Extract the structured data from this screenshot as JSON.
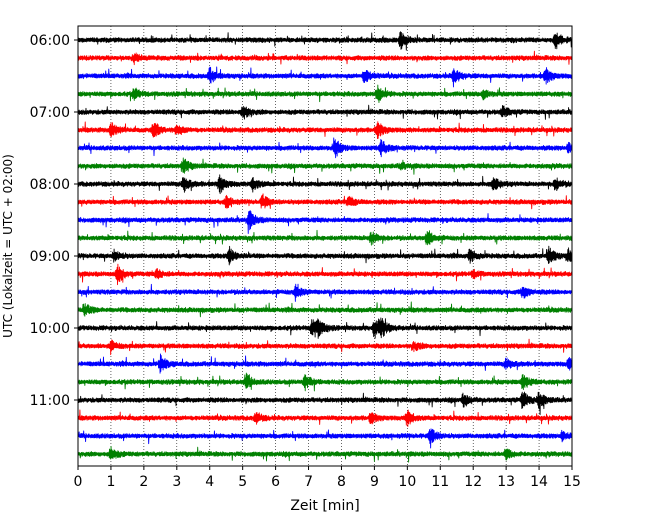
{
  "chart_data": {
    "type": "line",
    "title": "",
    "xlabel": "Zeit  [min]",
    "ylabel": "UTC (Lokalzeit = UTC + 02:00)",
    "xlim": [
      0,
      15
    ],
    "x_ticks": [
      0,
      1,
      2,
      3,
      4,
      5,
      6,
      7,
      8,
      9,
      10,
      11,
      12,
      13,
      14,
      15
    ],
    "vertical_gridlines": "dotted, every 1 min",
    "trace_interval_min": 15,
    "trace_count": 24,
    "trace_colors": [
      "#000000",
      "#ff0000",
      "#0000ff",
      "#008000"
    ],
    "time_labels": [
      {
        "label": "06:00",
        "trace": 0
      },
      {
        "label": "07:00",
        "trace": 4
      },
      {
        "label": "08:00",
        "trace": 8
      },
      {
        "label": "09:00",
        "trace": 12
      },
      {
        "label": "10:00",
        "trace": 16
      },
      {
        "label": "11:00",
        "trace": 20
      }
    ],
    "series": [
      {
        "start": "06:00",
        "color": "#000000",
        "events": [
          [
            9.8,
            0.9
          ],
          [
            14.5,
            1.0
          ]
        ]
      },
      {
        "start": "06:15",
        "color": "#ff0000",
        "events": [
          [
            1.7,
            0.5
          ]
        ]
      },
      {
        "start": "06:30",
        "color": "#0000ff",
        "events": [
          [
            4.0,
            0.8
          ],
          [
            8.7,
            0.9
          ],
          [
            11.4,
            1.0
          ],
          [
            14.2,
            0.9
          ]
        ]
      },
      {
        "start": "06:45",
        "color": "#008000",
        "events": [
          [
            1.7,
            0.6
          ],
          [
            9.1,
            0.9
          ],
          [
            12.3,
            0.5
          ]
        ]
      },
      {
        "start": "07:00",
        "color": "#000000",
        "events": [
          [
            5.0,
            0.9
          ],
          [
            12.9,
            0.6
          ]
        ]
      },
      {
        "start": "07:15",
        "color": "#ff0000",
        "events": [
          [
            1.0,
            0.8
          ],
          [
            2.3,
            0.9
          ],
          [
            3.0,
            0.6
          ],
          [
            9.1,
            0.9
          ]
        ]
      },
      {
        "start": "07:30",
        "color": "#0000ff",
        "events": [
          [
            7.8,
            1.0
          ],
          [
            9.2,
            0.9
          ],
          [
            14.9,
            0.7
          ]
        ]
      },
      {
        "start": "07:45",
        "color": "#008000",
        "events": [
          [
            3.2,
            0.8
          ],
          [
            9.8,
            0.3
          ]
        ]
      },
      {
        "start": "08:00",
        "color": "#000000",
        "events": [
          [
            3.2,
            0.9
          ],
          [
            4.3,
            1.0
          ],
          [
            5.3,
            0.8
          ],
          [
            12.6,
            0.9
          ],
          [
            14.5,
            0.7
          ]
        ]
      },
      {
        "start": "08:15",
        "color": "#ff0000",
        "events": [
          [
            4.5,
            0.6
          ],
          [
            5.6,
            0.8
          ],
          [
            8.2,
            0.6
          ]
        ]
      },
      {
        "start": "08:30",
        "color": "#0000ff",
        "events": [
          [
            5.2,
            1.0
          ]
        ]
      },
      {
        "start": "08:45",
        "color": "#008000",
        "events": [
          [
            8.9,
            0.7
          ],
          [
            10.6,
            0.9
          ]
        ]
      },
      {
        "start": "09:00",
        "color": "#000000",
        "events": [
          [
            1.1,
            0.6
          ],
          [
            4.6,
            1.0
          ],
          [
            11.9,
            0.7
          ],
          [
            14.3,
            1.0
          ],
          [
            14.9,
            0.7
          ]
        ]
      },
      {
        "start": "09:15",
        "color": "#ff0000",
        "events": [
          [
            1.2,
            1.0
          ],
          [
            2.4,
            0.5
          ],
          [
            12.0,
            0.4
          ]
        ]
      },
      {
        "start": "09:30",
        "color": "#0000ff",
        "events": [
          [
            6.6,
            0.7
          ],
          [
            13.5,
            0.7
          ]
        ]
      },
      {
        "start": "09:45",
        "color": "#008000",
        "events": [
          [
            0.2,
            0.7
          ]
        ]
      },
      {
        "start": "10:00",
        "color": "#000000",
        "events": [
          [
            7.1,
            1.0
          ],
          [
            7.3,
            0.9
          ],
          [
            9.0,
            1.0
          ],
          [
            9.2,
            0.9
          ]
        ]
      },
      {
        "start": "10:15",
        "color": "#ff0000",
        "events": [
          [
            1.0,
            0.5
          ],
          [
            10.2,
            0.5
          ]
        ]
      },
      {
        "start": "10:30",
        "color": "#0000ff",
        "events": [
          [
            2.5,
            0.9
          ],
          [
            13.0,
            0.6
          ],
          [
            14.9,
            0.6
          ]
        ]
      },
      {
        "start": "10:45",
        "color": "#008000",
        "events": [
          [
            5.1,
            0.8
          ],
          [
            6.9,
            0.9
          ],
          [
            13.5,
            0.9
          ]
        ]
      },
      {
        "start": "11:00",
        "color": "#000000",
        "events": [
          [
            11.7,
            0.7
          ],
          [
            13.5,
            1.0
          ],
          [
            14.0,
            1.0
          ]
        ]
      },
      {
        "start": "11:15",
        "color": "#ff0000",
        "events": [
          [
            5.4,
            0.6
          ],
          [
            8.9,
            0.6
          ],
          [
            10.0,
            0.9
          ]
        ]
      },
      {
        "start": "11:30",
        "color": "#0000ff",
        "events": [
          [
            10.7,
            1.0
          ],
          [
            14.7,
            0.6
          ]
        ]
      },
      {
        "start": "11:45",
        "color": "#008000",
        "events": [
          [
            1.0,
            0.7
          ],
          [
            13.0,
            0.6
          ]
        ]
      }
    ]
  }
}
